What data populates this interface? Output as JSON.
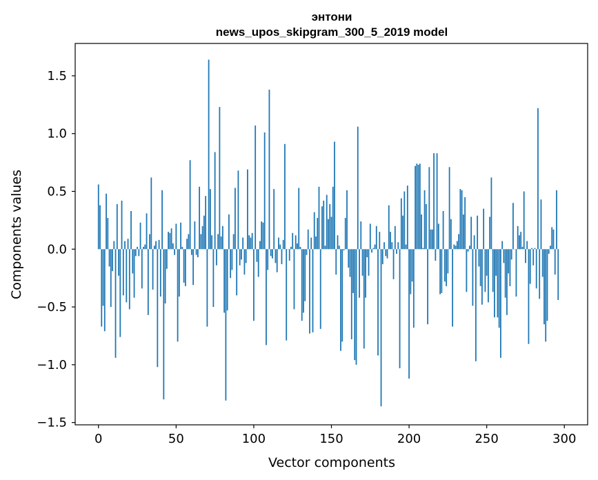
{
  "chart_data": {
    "type": "bar",
    "title_lines": [
      "энтони",
      "news_upos_skipgram_300_5_2019 model"
    ],
    "xlabel": "Vector components",
    "ylabel": "Components values",
    "xlim": [
      -15,
      315
    ],
    "ylim": [
      -1.52,
      1.78
    ],
    "xticks": [
      {
        "value": 0,
        "label": "0"
      },
      {
        "value": 50,
        "label": "50"
      },
      {
        "value": 100,
        "label": "100"
      },
      {
        "value": 150,
        "label": "150"
      },
      {
        "value": 200,
        "label": "200"
      },
      {
        "value": 250,
        "label": "250"
      },
      {
        "value": 300,
        "label": "300"
      }
    ],
    "yticks": [
      {
        "value": 1.5,
        "label": "1.5"
      },
      {
        "value": 1.0,
        "label": "1.0"
      },
      {
        "value": 0.5,
        "label": "0.5"
      },
      {
        "value": 0.0,
        "label": "0.0"
      },
      {
        "value": -0.5,
        "label": "−0.5"
      },
      {
        "value": -1.0,
        "label": "−1.0"
      },
      {
        "value": -1.5,
        "label": "−1.5"
      }
    ],
    "bar_color": "#1f77b4",
    "values": [
      0.56,
      0.38,
      -0.67,
      -0.49,
      -0.71,
      0.48,
      0.27,
      -0.15,
      -0.5,
      -0.19,
      0.07,
      -0.94,
      0.39,
      -0.23,
      -0.76,
      0.42,
      -0.4,
      0.07,
      -0.46,
      0.09,
      -0.52,
      0.33,
      -0.21,
      -0.42,
      -0.06,
      0.02,
      -0.06,
      0.23,
      -0.34,
      0.02,
      0.04,
      0.31,
      -0.57,
      0.13,
      0.62,
      -0.35,
      0.03,
      0.07,
      -1.02,
      0.08,
      -0.41,
      0.51,
      -1.3,
      -0.47,
      -0.17,
      0.15,
      0.14,
      0.18,
      0.05,
      -0.05,
      0.22,
      -0.8,
      -0.41,
      0.23,
      0.02,
      -0.29,
      -0.32,
      0.09,
      0.13,
      0.77,
      -0.05,
      -0.31,
      0.24,
      -0.05,
      -0.07,
      0.54,
      0.13,
      0.2,
      0.29,
      0.46,
      -0.67,
      1.64,
      0.52,
      0.12,
      -0.5,
      0.84,
      -0.14,
      0.13,
      1.23,
      0.11,
      0.2,
      -0.55,
      -1.31,
      -0.53,
      0.3,
      -0.25,
      -0.18,
      0.13,
      0.53,
      -0.4,
      0.68,
      -0.14,
      -0.09,
      0.1,
      -0.22,
      -0.12,
      0.69,
      0.12,
      0.1,
      0.14,
      -0.62,
      1.07,
      -0.11,
      -0.24,
      0.07,
      0.24,
      0.23,
      1.01,
      -0.83,
      -0.18,
      1.38,
      -0.06,
      -0.08,
      0.52,
      -0.12,
      -0.2,
      0.1,
      0.04,
      -0.13,
      0.08,
      0.91,
      -0.79,
      0.0,
      -0.1,
      0.02,
      0.14,
      -0.52,
      0.12,
      0.05,
      0.53,
      0.02,
      -0.62,
      -0.55,
      -0.45,
      -0.05,
      0.17,
      -0.73,
      0.1,
      -0.72,
      0.32,
      0.11,
      0.27,
      0.54,
      -0.69,
      0.37,
      0.42,
      0.03,
      0.47,
      0.26,
      0.39,
      0.28,
      0.54,
      0.93,
      -0.22,
      0.12,
      0.03,
      -0.88,
      -0.8,
      -0.01,
      0.27,
      0.51,
      -0.16,
      -0.24,
      -0.78,
      -0.38,
      -0.96,
      -1.0,
      1.06,
      -0.42,
      0.24,
      -0.23,
      -0.86,
      -0.42,
      -0.07,
      -0.23,
      0.22,
      -0.03,
      0.01,
      0.04,
      0.2,
      -0.92,
      0.15,
      -1.36,
      -0.13,
      0.06,
      -0.06,
      -0.08,
      0.38,
      0.15,
      0.06,
      -0.26,
      0.2,
      -0.04,
      0.06,
      -1.03,
      0.44,
      0.29,
      0.5,
      0.04,
      0.55,
      -1.12,
      -0.39,
      -0.28,
      -0.68,
      0.72,
      0.74,
      0.73,
      0.74,
      0.3,
      0.01,
      0.51,
      0.39,
      -0.65,
      0.71,
      0.17,
      0.17,
      0.83,
      -0.1,
      0.83,
      0.22,
      -0.39,
      -0.38,
      0.33,
      -0.28,
      -0.32,
      -0.21,
      0.71,
      0.26,
      -0.67,
      0.04,
      0.03,
      0.07,
      0.13,
      0.52,
      0.51,
      0.3,
      0.45,
      -0.37,
      -0.02,
      0.03,
      0.28,
      -0.49,
      0.12,
      -0.97,
      0.29,
      -0.15,
      -0.32,
      -0.48,
      0.35,
      -0.37,
      -0.23,
      -0.46,
      0.28,
      0.62,
      -0.37,
      -0.59,
      -0.23,
      -0.59,
      -0.68,
      -0.94,
      0.07,
      -0.12,
      -0.42,
      -0.57,
      -0.21,
      -0.32,
      -0.09,
      0.4,
      0.0,
      -0.41,
      0.2,
      0.12,
      0.15,
      0.02,
      0.5,
      -0.12,
      0.07,
      -0.82,
      -0.3,
      0.01,
      -0.14,
      0.01,
      -0.34,
      1.22,
      -0.43,
      0.43,
      -0.24,
      -0.65,
      -0.8,
      -0.62,
      -0.04,
      0.03,
      0.19,
      0.17,
      -0.22,
      0.51,
      -0.44
    ]
  }
}
